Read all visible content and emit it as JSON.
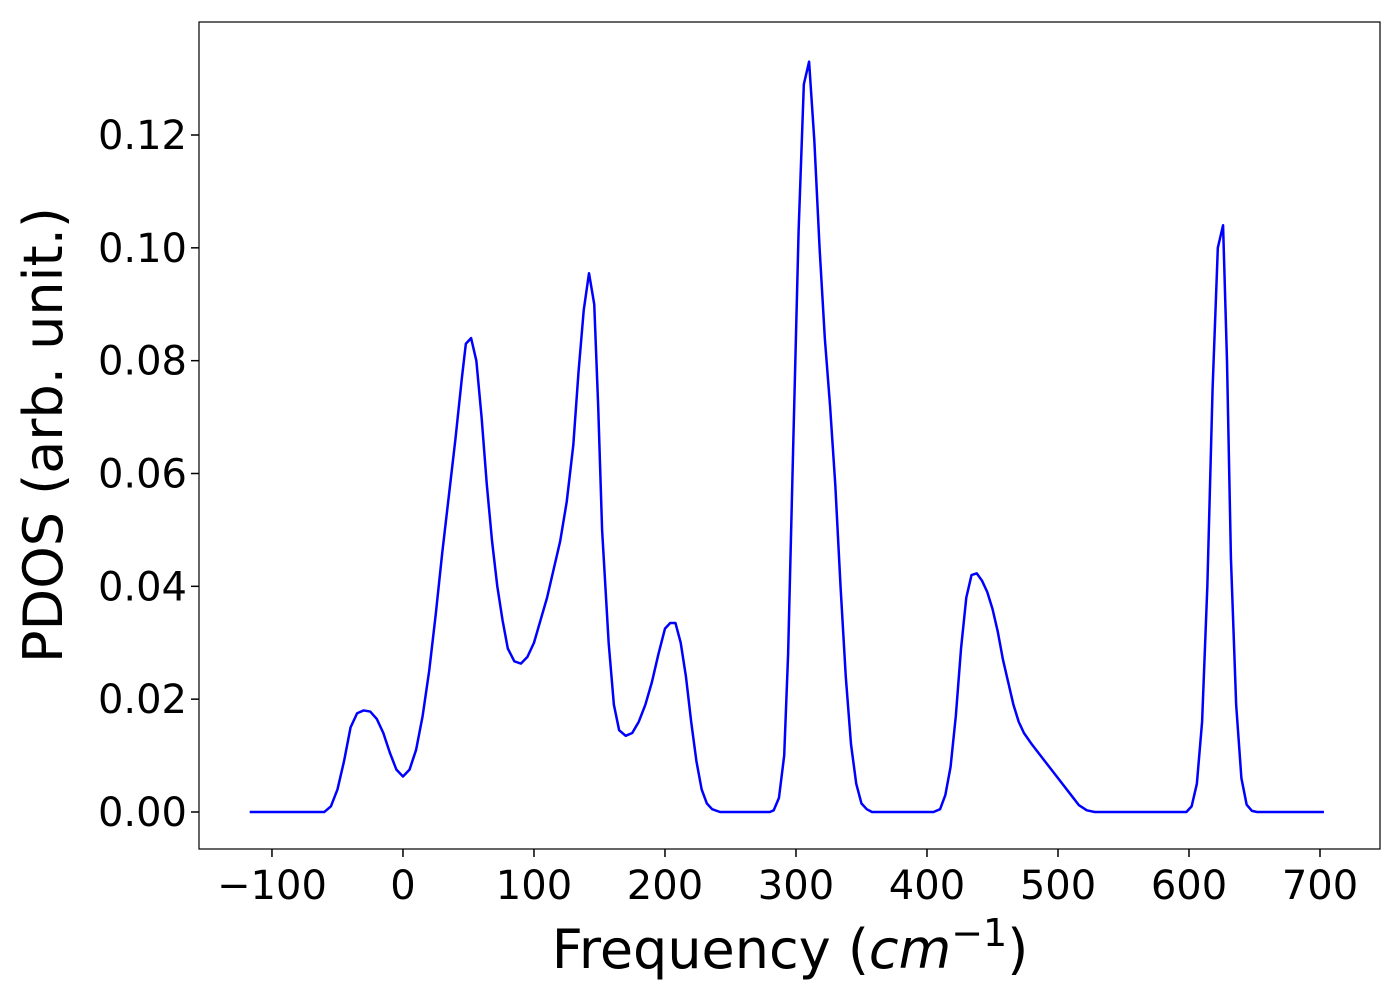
{
  "chart_data": {
    "type": "line",
    "xlabel_parts": [
      "Frequency (",
      "cm",
      "−1",
      ")"
    ],
    "ylabel": "PDOS (arb. unit.)",
    "x": [
      -117,
      -60,
      -55,
      -50,
      -45,
      -40,
      -35,
      -30,
      -25,
      -20,
      -15,
      -10,
      -5,
      0,
      5,
      10,
      15,
      20,
      25,
      30,
      35,
      40,
      45,
      48,
      52,
      56,
      60,
      64,
      68,
      72,
      76,
      80,
      85,
      90,
      95,
      100,
      105,
      110,
      115,
      120,
      125,
      130,
      134,
      138,
      142,
      146,
      149,
      152,
      157,
      161,
      165,
      170,
      175,
      180,
      185,
      190,
      195,
      200,
      204,
      208,
      212,
      216,
      220,
      224,
      228,
      232,
      236,
      242,
      280,
      283,
      287,
      291,
      294,
      298,
      302,
      306,
      310,
      314,
      318,
      322,
      326,
      330,
      334,
      338,
      342,
      346,
      350,
      354,
      358,
      405,
      410,
      414,
      418,
      422,
      426,
      430,
      434,
      438,
      442,
      446,
      450,
      454,
      458,
      462,
      466,
      470,
      474,
      480,
      490,
      500,
      510,
      516,
      522,
      528,
      598,
      602,
      606,
      610,
      614,
      618,
      622,
      626,
      629,
      632,
      636,
      640,
      644,
      648,
      652,
      703
    ],
    "series": [
      {
        "color": "#0000ff",
        "values": [
          0,
          0,
          0.001,
          0.004,
          0.009,
          0.015,
          0.0175,
          0.018,
          0.0178,
          0.0165,
          0.014,
          0.0105,
          0.0075,
          0.0063,
          0.0075,
          0.011,
          0.017,
          0.025,
          0.035,
          0.046,
          0.056,
          0.066,
          0.077,
          0.083,
          0.084,
          0.08,
          0.07,
          0.058,
          0.048,
          0.04,
          0.034,
          0.029,
          0.0267,
          0.0263,
          0.0275,
          0.03,
          0.034,
          0.038,
          0.043,
          0.048,
          0.055,
          0.065,
          0.078,
          0.089,
          0.0955,
          0.09,
          0.072,
          0.05,
          0.03,
          0.019,
          0.0145,
          0.0135,
          0.014,
          0.016,
          0.019,
          0.023,
          0.028,
          0.0325,
          0.0335,
          0.0335,
          0.03,
          0.024,
          0.016,
          0.009,
          0.004,
          0.0015,
          0.0005,
          0,
          0,
          0.0003,
          0.0025,
          0.01,
          0.028,
          0.066,
          0.103,
          0.129,
          0.133,
          0.119,
          0.1,
          0.084,
          0.072,
          0.058,
          0.04,
          0.024,
          0.012,
          0.005,
          0.0015,
          0.0005,
          0,
          0,
          0.0005,
          0.003,
          0.008,
          0.017,
          0.029,
          0.038,
          0.042,
          0.0423,
          0.041,
          0.039,
          0.036,
          0.032,
          0.027,
          0.023,
          0.019,
          0.016,
          0.014,
          0.012,
          0.009,
          0.006,
          0.003,
          0.0012,
          0.0003,
          0,
          0,
          0.001,
          0.005,
          0.016,
          0.04,
          0.075,
          0.1,
          0.104,
          0.08,
          0.045,
          0.019,
          0.006,
          0.0013,
          0.0002,
          0,
          0
        ]
      }
    ],
    "xlim": [
      -155.7,
      745.8
    ],
    "ylim": [
      -0.00656,
      0.14003
    ],
    "xticks": [
      {
        "value": -100,
        "label": "−100"
      },
      0,
      100,
      200,
      300,
      400,
      500,
      600,
      700
    ],
    "yticks": [
      {
        "value": 0,
        "label": "0.00"
      },
      0.02,
      0.04,
      0.06,
      0.08,
      {
        "value": 0.1,
        "label": "0.10"
      },
      0.12
    ]
  }
}
